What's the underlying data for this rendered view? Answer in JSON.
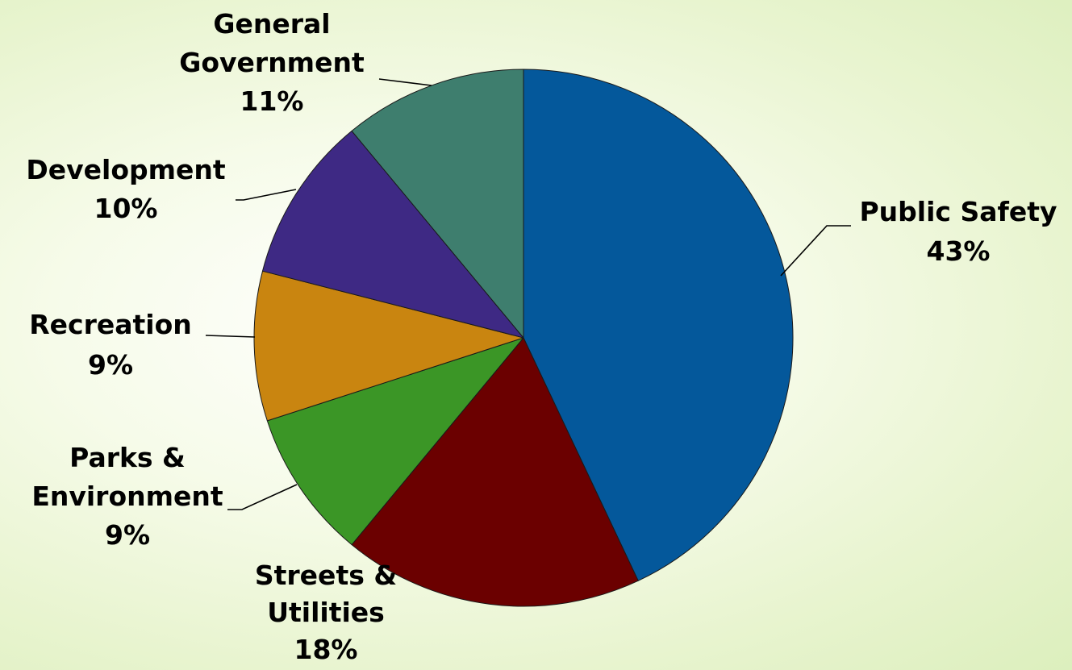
{
  "chart_data": {
    "type": "pie",
    "title": "",
    "legend": "none",
    "slices": [
      {
        "name": "Public Safety",
        "value": 43,
        "label_lines": [
          "Public Safety",
          "43%"
        ],
        "color": "#04589B"
      },
      {
        "name": "Streets & Utilities",
        "value": 18,
        "label_lines": [
          "Streets &",
          "Utilities",
          "18%"
        ],
        "color": "#6B0000"
      },
      {
        "name": "Parks & Environment",
        "value": 9,
        "label_lines": [
          "Parks &",
          "Environment",
          "9%"
        ],
        "color": "#3B9626"
      },
      {
        "name": "Recreation",
        "value": 9,
        "label_lines": [
          "Recreation",
          "9%"
        ],
        "color": "#C98510"
      },
      {
        "name": "Development",
        "value": 10,
        "label_lines": [
          "Development",
          "10%"
        ],
        "color": "#3E2984"
      },
      {
        "name": "General Government",
        "value": 11,
        "label_lines": [
          "General",
          "Government",
          "11%"
        ],
        "color": "#3E7E6E"
      }
    ]
  }
}
